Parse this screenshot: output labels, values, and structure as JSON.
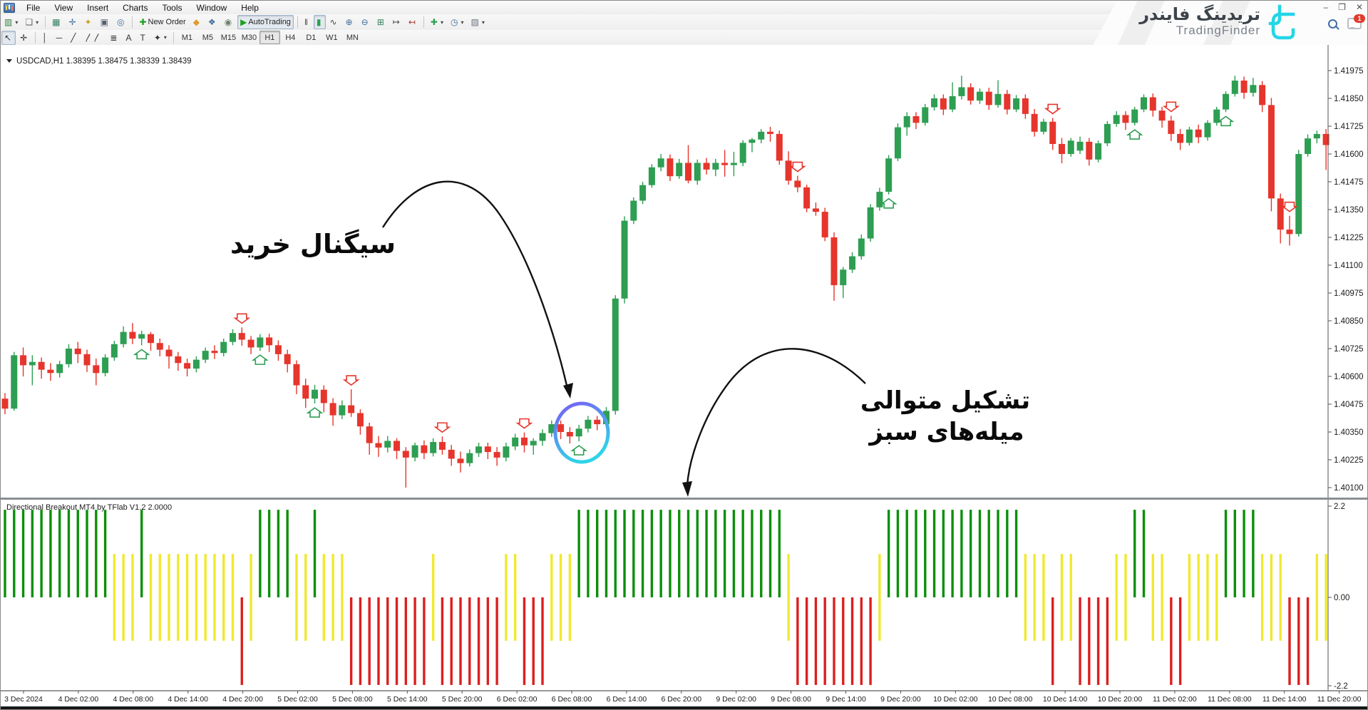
{
  "window": {
    "minimize": "–",
    "restore": "❐",
    "close": "✕",
    "chat_badge": "1"
  },
  "brand": {
    "name_fa": "تریدینگ فایندر",
    "name_en": "TradingFinder",
    "accent": "#22d6e6"
  },
  "menu": {
    "items": [
      "File",
      "View",
      "Insert",
      "Charts",
      "Tools",
      "Window",
      "Help"
    ]
  },
  "toolbar1": [
    {
      "name": "new-chart",
      "glyph": "▥",
      "color": "#2e7d3b",
      "caret": true
    },
    {
      "name": "profiles",
      "glyph": "❏",
      "color": "#5a646e",
      "caret": true
    },
    {
      "name": "sep"
    },
    {
      "name": "market-watch",
      "glyph": "▦",
      "color": "#2e7d5b"
    },
    {
      "name": "data-window",
      "glyph": "✛",
      "color": "#3d6e9e"
    },
    {
      "name": "navigator",
      "glyph": "✦",
      "color": "#c9a227"
    },
    {
      "name": "terminal",
      "glyph": "▣",
      "color": "#55606e"
    },
    {
      "name": "strategy-tester",
      "glyph": "◎",
      "color": "#3d6e9e"
    },
    {
      "name": "sep"
    },
    {
      "name": "new-order",
      "glyph": "✚",
      "color": "#1fa01f",
      "label": "New Order"
    },
    {
      "name": "metaeditor",
      "glyph": "◆",
      "color": "#e09a2f"
    },
    {
      "name": "experts",
      "glyph": "❖",
      "color": "#3d6e9e"
    },
    {
      "name": "alerts",
      "glyph": "◉",
      "color": "#6b7f6b"
    },
    {
      "name": "autotrading",
      "glyph": "▶",
      "color": "#1fa01f",
      "label": "AutoTrading",
      "active": true
    },
    {
      "name": "sep"
    },
    {
      "name": "bar-chart",
      "glyph": "‖",
      "color": "#444444"
    },
    {
      "name": "candle-chart",
      "glyph": "▮",
      "color": "#2aa14d",
      "active": true
    },
    {
      "name": "line-chart",
      "glyph": "∿",
      "color": "#444444"
    },
    {
      "name": "zoom-in",
      "glyph": "⊕",
      "color": "#3d6e9e"
    },
    {
      "name": "zoom-out",
      "glyph": "⊖",
      "color": "#3d6e9e"
    },
    {
      "name": "tile-windows",
      "glyph": "⊞",
      "color": "#2e7d5b"
    },
    {
      "name": "auto-scroll",
      "glyph": "↦",
      "color": "#444444"
    },
    {
      "name": "chart-shift",
      "glyph": "↤",
      "color": "#a33a2e"
    },
    {
      "name": "sep"
    },
    {
      "name": "indicators",
      "glyph": "✚",
      "color": "#2aa14d",
      "caret": true
    },
    {
      "name": "periods",
      "glyph": "◷",
      "color": "#3d6e9e",
      "caret": true
    },
    {
      "name": "templates",
      "glyph": "▨",
      "color": "#6b7280",
      "caret": true
    }
  ],
  "toolbar2": {
    "tools": [
      {
        "name": "cursor",
        "glyph": "↖",
        "active": true
      },
      {
        "name": "crosshair",
        "glyph": "✛"
      },
      {
        "name": "sep"
      },
      {
        "name": "vertical-line",
        "glyph": "│"
      },
      {
        "name": "horizontal-line",
        "glyph": "─"
      },
      {
        "name": "trendline",
        "glyph": "╱"
      },
      {
        "name": "equidistant-channel",
        "glyph": "〳〳"
      },
      {
        "name": "fibonacci",
        "glyph": "≣"
      },
      {
        "name": "text",
        "glyph": "A"
      },
      {
        "name": "text-label",
        "glyph": "T"
      },
      {
        "name": "arrows",
        "glyph": "✦",
        "caret": true
      },
      {
        "name": "sep"
      }
    ],
    "timeframes": [
      "M1",
      "M5",
      "M15",
      "M30",
      "H1",
      "H4",
      "D1",
      "W1",
      "MN"
    ],
    "active_timeframe": "H1"
  },
  "chart": {
    "symbol": "USDCAD,H1",
    "ohlc_line": "1.38395 1.38475 1.38339 1.38439",
    "colors": {
      "up": "#2E9E52",
      "down": "#E6352C",
      "bg": "#ffffff",
      "axis_text": "#1a1a1a",
      "ind_green": "#0B8F0B",
      "ind_yellow": "#F0E92E",
      "ind_red": "#DC1F1F",
      "ring_start": "#7a5cf5",
      "ring_end": "#2fd3e8"
    }
  },
  "annotations": {
    "buy_signal": "سیگنال خرید",
    "consec_line1": "تشکیل متوالی",
    "consec_line2": "میله‌های سبز"
  },
  "indicator": {
    "label": "Directional Breakout MT4 by TFlab V1.2 2.0000",
    "axis_labels": [
      "2.2",
      "0.00",
      "-2.2"
    ]
  },
  "chart_data": {
    "type": "candlestick+histogram",
    "title": "USDCAD,H1",
    "price_axis_labels": [
      "1.41975",
      "1.41850",
      "1.41725",
      "1.41600",
      "1.41475",
      "1.41350",
      "1.41225",
      "1.41100",
      "1.40975",
      "1.40850",
      "1.40725",
      "1.40600",
      "1.40475",
      "1.40350",
      "1.40225",
      "1.40100"
    ],
    "time_axis_labels": [
      "3 Dec 2024",
      "4 Dec 02:00",
      "4 Dec 08:00",
      "4 Dec 14:00",
      "4 Dec 20:00",
      "5 Dec 02:00",
      "5 Dec 08:00",
      "5 Dec 14:00",
      "5 Dec 20:00",
      "6 Dec 02:00",
      "6 Dec 08:00",
      "6 Dec 14:00",
      "6 Dec 20:00",
      "9 Dec 02:00",
      "9 Dec 08:00",
      "9 Dec 14:00",
      "9 Dec 20:00",
      "10 Dec 02:00",
      "10 Dec 08:00",
      "10 Dec 14:00",
      "10 Dec 20:00",
      "11 Dec 02:00",
      "11 Dec 08:00",
      "11 Dec 14:00",
      "11 Dec 20:00"
    ],
    "indicator_range": [
      -2.2,
      2.2
    ],
    "indicator_states": "GGGGGGGGGGGGYYYGYYYYYYYYYYRYGGGGYYGYYYRRRRRRRRRYRRRRRRRYYRRRYYYGGGGGGGGGGGGGGGGGGGGGGGYRRRRRRRRRYGGGGGGGGGGGGGGGYYYRYYRRRRYYGGYYRRYYYYGGGGYYYRRRYY",
    "indicator_values": {
      "G": [
        0,
        2.08
      ],
      "Y": [
        -1.03,
        1.03
      ],
      "R": [
        -2.08,
        0
      ]
    },
    "signal_markers": {
      "up": [
        15,
        28,
        34,
        63,
        97,
        124,
        134
      ],
      "down": [
        26,
        38,
        48,
        57,
        87,
        115,
        128,
        141
      ]
    },
    "candles": [
      [
        1.405,
        1.40525,
        1.4043,
        1.40455
      ],
      [
        1.40455,
        1.4071,
        1.40445,
        1.40695
      ],
      [
        1.40695,
        1.4073,
        1.406,
        1.4065
      ],
      [
        1.4065,
        1.40695,
        1.4056,
        1.40665
      ],
      [
        1.40665,
        1.40685,
        1.4059,
        1.4063
      ],
      [
        1.4063,
        1.4066,
        1.4058,
        1.40615
      ],
      [
        1.40615,
        1.4067,
        1.40595,
        1.40655
      ],
      [
        1.40655,
        1.40745,
        1.4064,
        1.40725
      ],
      [
        1.40725,
        1.40755,
        1.4066,
        1.407
      ],
      [
        1.407,
        1.4072,
        1.4062,
        1.4065
      ],
      [
        1.4065,
        1.4068,
        1.4056,
        1.40615
      ],
      [
        1.40615,
        1.407,
        1.406,
        1.40685
      ],
      [
        1.40685,
        1.4076,
        1.4067,
        1.40745
      ],
      [
        1.40745,
        1.40825,
        1.4073,
        1.408
      ],
      [
        1.408,
        1.4084,
        1.40745,
        1.4077
      ],
      [
        1.4077,
        1.40805,
        1.4074,
        1.4079
      ],
      [
        1.4079,
        1.408,
        1.40715,
        1.4075
      ],
      [
        1.4075,
        1.4077,
        1.4069,
        1.4072
      ],
      [
        1.4072,
        1.4074,
        1.40635,
        1.4069
      ],
      [
        1.4069,
        1.4071,
        1.40625,
        1.4066
      ],
      [
        1.4066,
        1.4068,
        1.406,
        1.40635
      ],
      [
        1.40635,
        1.4069,
        1.40618,
        1.40675
      ],
      [
        1.40675,
        1.4073,
        1.4066,
        1.40715
      ],
      [
        1.40715,
        1.4074,
        1.40678,
        1.40705
      ],
      [
        1.40705,
        1.4077,
        1.4069,
        1.40755
      ],
      [
        1.40755,
        1.40812,
        1.4074,
        1.40795
      ],
      [
        1.40795,
        1.4082,
        1.40738,
        1.40765
      ],
      [
        1.40765,
        1.40782,
        1.407,
        1.4073
      ],
      [
        1.4073,
        1.4079,
        1.40715,
        1.40775
      ],
      [
        1.40775,
        1.40792,
        1.4071,
        1.4074
      ],
      [
        1.4074,
        1.40762,
        1.4067,
        1.407
      ],
      [
        1.407,
        1.4072,
        1.40618,
        1.40655
      ],
      [
        1.40655,
        1.40672,
        1.4052,
        1.4056
      ],
      [
        1.4056,
        1.4059,
        1.40458,
        1.405
      ],
      [
        1.405,
        1.40562,
        1.40478,
        1.4054
      ],
      [
        1.4054,
        1.4056,
        1.40438,
        1.4048
      ],
      [
        1.4048,
        1.40502,
        1.40378,
        1.40425
      ],
      [
        1.40425,
        1.40492,
        1.40408,
        1.4047
      ],
      [
        1.4047,
        1.40542,
        1.40418,
        1.40435
      ],
      [
        1.40435,
        1.40452,
        1.40338,
        1.40375
      ],
      [
        1.40375,
        1.40392,
        1.40248,
        1.403
      ],
      [
        1.403,
        1.40332,
        1.40238,
        1.4028
      ],
      [
        1.4028,
        1.40332,
        1.40258,
        1.4031
      ],
      [
        1.4031,
        1.40322,
        1.40228,
        1.40265
      ],
      [
        1.40265,
        1.40282,
        1.401,
        1.40235
      ],
      [
        1.40235,
        1.40302,
        1.40218,
        1.4029
      ],
      [
        1.4029,
        1.40312,
        1.40228,
        1.40255
      ],
      [
        1.40255,
        1.40322,
        1.4024,
        1.40305
      ],
      [
        1.40305,
        1.4033,
        1.40248,
        1.4027
      ],
      [
        1.4027,
        1.40292,
        1.40198,
        1.4023
      ],
      [
        1.4023,
        1.40262,
        1.40168,
        1.4021
      ],
      [
        1.4021,
        1.40272,
        1.40195,
        1.40255
      ],
      [
        1.40255,
        1.40302,
        1.40238,
        1.40285
      ],
      [
        1.40285,
        1.40302,
        1.40228,
        1.4026
      ],
      [
        1.4026,
        1.40282,
        1.40198,
        1.40235
      ],
      [
        1.40235,
        1.40302,
        1.40218,
        1.40285
      ],
      [
        1.40285,
        1.40342,
        1.40268,
        1.40325
      ],
      [
        1.40325,
        1.40348,
        1.40258,
        1.4029
      ],
      [
        1.4029,
        1.40322,
        1.40248,
        1.4031
      ],
      [
        1.4031,
        1.40362,
        1.40288,
        1.40345
      ],
      [
        1.40345,
        1.40402,
        1.40328,
        1.40385
      ],
      [
        1.40385,
        1.40402,
        1.40318,
        1.4035
      ],
      [
        1.4035,
        1.40372,
        1.40298,
        1.4033
      ],
      [
        1.4033,
        1.40382,
        1.40308,
        1.40365
      ],
      [
        1.40365,
        1.40422,
        1.40348,
        1.40405
      ],
      [
        1.40405,
        1.40422,
        1.40358,
        1.40385
      ],
      [
        1.40385,
        1.40462,
        1.40368,
        1.40445
      ],
      [
        1.40445,
        1.40965,
        1.40428,
        1.4095
      ],
      [
        1.4095,
        1.4132,
        1.40928,
        1.413
      ],
      [
        1.413,
        1.41405,
        1.41285,
        1.4139
      ],
      [
        1.4139,
        1.41475,
        1.41375,
        1.4146
      ],
      [
        1.4146,
        1.41555,
        1.41448,
        1.4154
      ],
      [
        1.4154,
        1.416,
        1.41522,
        1.4158
      ],
      [
        1.4158,
        1.41598,
        1.41478,
        1.415
      ],
      [
        1.415,
        1.41578,
        1.41488,
        1.4156
      ],
      [
        1.4156,
        1.4164,
        1.41468,
        1.4148
      ],
      [
        1.4148,
        1.41575,
        1.41462,
        1.4156
      ],
      [
        1.4156,
        1.41582,
        1.41508,
        1.4153
      ],
      [
        1.4153,
        1.41578,
        1.415,
        1.4156
      ],
      [
        1.4156,
        1.41618,
        1.41498,
        1.4155
      ],
      [
        1.4155,
        1.4161,
        1.415,
        1.4156
      ],
      [
        1.4156,
        1.41662,
        1.41545,
        1.4165
      ],
      [
        1.4165,
        1.41672,
        1.41608,
        1.41665
      ],
      [
        1.41665,
        1.41712,
        1.41648,
        1.417
      ],
      [
        1.417,
        1.41722,
        1.41655,
        1.4169
      ],
      [
        1.4169,
        1.41705,
        1.41552,
        1.4157
      ],
      [
        1.4157,
        1.41612,
        1.41462,
        1.4148
      ],
      [
        1.4148,
        1.41502,
        1.41428,
        1.4145
      ],
      [
        1.4145,
        1.41462,
        1.41338,
        1.41355
      ],
      [
        1.41355,
        1.41382,
        1.41322,
        1.4134
      ],
      [
        1.4134,
        1.41358,
        1.41208,
        1.41225
      ],
      [
        1.41225,
        1.41248,
        1.4094,
        1.4101
      ],
      [
        1.4101,
        1.41092,
        1.40952,
        1.4108
      ],
      [
        1.4108,
        1.41158,
        1.41065,
        1.4114
      ],
      [
        1.4114,
        1.41238,
        1.41125,
        1.4122
      ],
      [
        1.4122,
        1.41375,
        1.41205,
        1.4136
      ],
      [
        1.4136,
        1.41448,
        1.41345,
        1.4143
      ],
      [
        1.4143,
        1.41595,
        1.41418,
        1.4158
      ],
      [
        1.4158,
        1.41738,
        1.41568,
        1.4172
      ],
      [
        1.4172,
        1.41788,
        1.41682,
        1.4177
      ],
      [
        1.4177,
        1.41788,
        1.41712,
        1.4174
      ],
      [
        1.4174,
        1.41825,
        1.41728,
        1.4181
      ],
      [
        1.4181,
        1.41868,
        1.41795,
        1.4185
      ],
      [
        1.4185,
        1.41868,
        1.41775,
        1.418
      ],
      [
        1.418,
        1.41922,
        1.41788,
        1.4186
      ],
      [
        1.4186,
        1.41952,
        1.41845,
        1.419
      ],
      [
        1.419,
        1.41918,
        1.41822,
        1.4184
      ],
      [
        1.4184,
        1.41895,
        1.41825,
        1.4188
      ],
      [
        1.4188,
        1.41898,
        1.41798,
        1.4182
      ],
      [
        1.4182,
        1.41932,
        1.41808,
        1.4187
      ],
      [
        1.4187,
        1.41888,
        1.41778,
        1.418
      ],
      [
        1.418,
        1.41865,
        1.41788,
        1.4185
      ],
      [
        1.4185,
        1.41868,
        1.41758,
        1.4178
      ],
      [
        1.4178,
        1.41802,
        1.41678,
        1.417
      ],
      [
        1.417,
        1.41758,
        1.41688,
        1.41745
      ],
      [
        1.41745,
        1.41762,
        1.41618,
        1.41645
      ],
      [
        1.41645,
        1.41672,
        1.41558,
        1.416
      ],
      [
        1.416,
        1.41672,
        1.41588,
        1.4166
      ],
      [
        1.41615,
        1.41678,
        1.416,
        1.41655
      ],
      [
        1.41655,
        1.41672,
        1.41548,
        1.41575
      ],
      [
        1.41575,
        1.4166,
        1.41562,
        1.41648
      ],
      [
        1.41648,
        1.41748,
        1.41635,
        1.41735
      ],
      [
        1.41735,
        1.41792,
        1.41722,
        1.41775
      ],
      [
        1.41775,
        1.41792,
        1.41708,
        1.4174
      ],
      [
        1.4174,
        1.41812,
        1.41728,
        1.418
      ],
      [
        1.418,
        1.41868,
        1.41788,
        1.41855
      ],
      [
        1.41855,
        1.41872,
        1.41768,
        1.41795
      ],
      [
        1.41795,
        1.41812,
        1.41718,
        1.4175
      ],
      [
        1.4175,
        1.41772,
        1.41658,
        1.4169
      ],
      [
        1.4169,
        1.41712,
        1.41618,
        1.4165
      ],
      [
        1.4165,
        1.41722,
        1.41638,
        1.4171
      ],
      [
        1.4171,
        1.41732,
        1.41648,
        1.41675
      ],
      [
        1.41675,
        1.41752,
        1.4166,
        1.4174
      ],
      [
        1.4174,
        1.41812,
        1.41728,
        1.418
      ],
      [
        1.418,
        1.41882,
        1.41788,
        1.4187
      ],
      [
        1.4187,
        1.41952,
        1.41858,
        1.4193
      ],
      [
        1.4193,
        1.41948,
        1.41848,
        1.41875
      ],
      [
        1.41875,
        1.41942,
        1.41858,
        1.4191
      ],
      [
        1.4191,
        1.41928,
        1.41788,
        1.4182
      ],
      [
        1.4182,
        1.41852,
        1.41342,
        1.414
      ],
      [
        1.414,
        1.41422,
        1.41198,
        1.4126
      ],
      [
        1.4126,
        1.41322,
        1.41188,
        1.4124
      ],
      [
        1.4124,
        1.41618,
        1.41228,
        1.416
      ],
      [
        1.416,
        1.41688,
        1.41588,
        1.4167
      ],
      [
        1.4167,
        1.41705,
        1.41648,
        1.4169
      ],
      [
        1.4169,
        1.41712,
        1.41528,
        1.4164
      ]
    ]
  }
}
